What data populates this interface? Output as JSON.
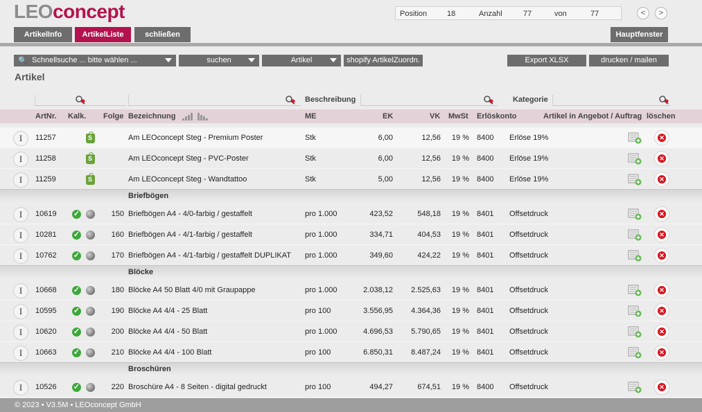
{
  "app": {
    "logo_part1": "LEO",
    "logo_part2": "concept",
    "brand_color": "#b3124e"
  },
  "position": {
    "position_label": "Position",
    "position_value": "18",
    "count_label": "Anzahl",
    "count_value": "77",
    "of_label": "von",
    "of_value": "77",
    "prev_icon": "<",
    "next_icon": ">"
  },
  "tabs": [
    {
      "label": "ArtikelInfo",
      "active": false
    },
    {
      "label": "ArtikelListe",
      "active": true
    },
    {
      "label": "schließen",
      "active": false
    }
  ],
  "main_window_button": "Hauptfenster",
  "toolbar": {
    "search_placeholder": "Schnellsuche ... bitte wählen ...",
    "search_button": "suchen",
    "type_select": "Artikel",
    "shopify_button": "shopify ArtikelZuordn.",
    "export_button": "Export XLSX",
    "print_button": "drucken / mailen"
  },
  "section_title": "Artikel",
  "filters": {
    "description_label": "Beschreibung",
    "category_label": "Kategorie"
  },
  "columns": {
    "artnr": "ArtNr.",
    "kalk": "Kalk.",
    "folge": "Folge",
    "bezeichnung": "Bezeichnung",
    "me": "ME",
    "ek": "EK",
    "vk": "VK",
    "mwst": "MwSt",
    "erloeskonto": "Erlöskonto",
    "angebot": "Artikel in Angebot / Auftrag",
    "loeschen": "löschen"
  },
  "list": [
    {
      "kind": "row",
      "artnr": "11257",
      "kalk": "shopify",
      "folge": "",
      "name": "Am LEOconcept Steg - Premium Poster",
      "me": "Stk",
      "ek": "6,00",
      "vk": "12,56",
      "mwst": "19 %",
      "konto": "8400",
      "kategorie": "Erlöse 19%",
      "highlight": true
    },
    {
      "kind": "row",
      "artnr": "11258",
      "kalk": "shopify",
      "folge": "",
      "name": "Am LEOconcept Steg - PVC-Poster",
      "me": "Stk",
      "ek": "6,00",
      "vk": "12,56",
      "mwst": "19 %",
      "konto": "8400",
      "kategorie": "Erlöse 19%"
    },
    {
      "kind": "row",
      "artnr": "11259",
      "kalk": "shopify",
      "folge": "",
      "name": "Am LEOconcept Steg - Wandtattoo",
      "me": "Stk",
      "ek": "5,00",
      "vk": "12,56",
      "mwst": "19 %",
      "konto": "8400",
      "kategorie": "Erlöse 19%"
    },
    {
      "kind": "group",
      "label": "Briefbögen"
    },
    {
      "kind": "row",
      "artnr": "10619",
      "kalk": "check",
      "folge": "150",
      "name": "Briefbögen A4 - 4/0-farbig / gestaffelt",
      "me": "pro 1.000",
      "ek": "423,52",
      "vk": "548,18",
      "mwst": "19 %",
      "konto": "8401",
      "kategorie": "Offsetdruck"
    },
    {
      "kind": "row",
      "artnr": "10281",
      "kalk": "check",
      "folge": "160",
      "name": "Briefbögen A4 - 4/1-farbig / gestaffelt",
      "me": "pro 1.000",
      "ek": "334,71",
      "vk": "404,53",
      "mwst": "19 %",
      "konto": "8401",
      "kategorie": "Offsetdruck"
    },
    {
      "kind": "row",
      "artnr": "10762",
      "kalk": "check",
      "folge": "170",
      "name": "Briefbögen A4 - 4/1-farbig / gestaffelt DUPLIKAT",
      "me": "pro 1.000",
      "ek": "349,60",
      "vk": "424,22",
      "mwst": "19 %",
      "konto": "8401",
      "kategorie": "Offsetdruck"
    },
    {
      "kind": "group",
      "label": "Blöcke"
    },
    {
      "kind": "row",
      "artnr": "10668",
      "kalk": "check",
      "folge": "180",
      "name": "Blöcke A4 50 Blatt 4/0 mit Graupappe",
      "me": "pro 1.000",
      "ek": "2.038,12",
      "vk": "2.525,63",
      "mwst": "19 %",
      "konto": "8401",
      "kategorie": "Offsetdruck"
    },
    {
      "kind": "row",
      "artnr": "10595",
      "kalk": "check",
      "folge": "190",
      "name": "Blöcke A4 4/4 - 25 Blatt",
      "me": "pro 100",
      "ek": "3.556,95",
      "vk": "4.364,36",
      "mwst": "19 %",
      "konto": "8401",
      "kategorie": "Offsetdruck"
    },
    {
      "kind": "row",
      "artnr": "10620",
      "kalk": "check",
      "folge": "200",
      "name": "Blöcke A4 4/4 - 50 Blatt",
      "me": "pro 1.000",
      "ek": "4.696,53",
      "vk": "5.790,65",
      "mwst": "19 %",
      "konto": "8401",
      "kategorie": "Offsetdruck"
    },
    {
      "kind": "row",
      "artnr": "10663",
      "kalk": "check",
      "folge": "210",
      "name": "Blöcke A4 4/4 - 100 Blatt",
      "me": "pro 100",
      "ek": "6.850,31",
      "vk": "8.487,24",
      "mwst": "19 %",
      "konto": "8401",
      "kategorie": "Offsetdruck"
    },
    {
      "kind": "group",
      "label": "Broschüren"
    },
    {
      "kind": "row",
      "artnr": "10526",
      "kalk": "check",
      "folge": "220",
      "name": "Broschüre A4 - 8 Seiten - digital gedruckt",
      "me": "pro 100",
      "ek": "494,27",
      "vk": "674,51",
      "mwst": "19 %",
      "konto": "8400",
      "kategorie": "Offsetdruck"
    }
  ],
  "footer": "© 2023 • V3.5M • LEOconcept GmbH"
}
